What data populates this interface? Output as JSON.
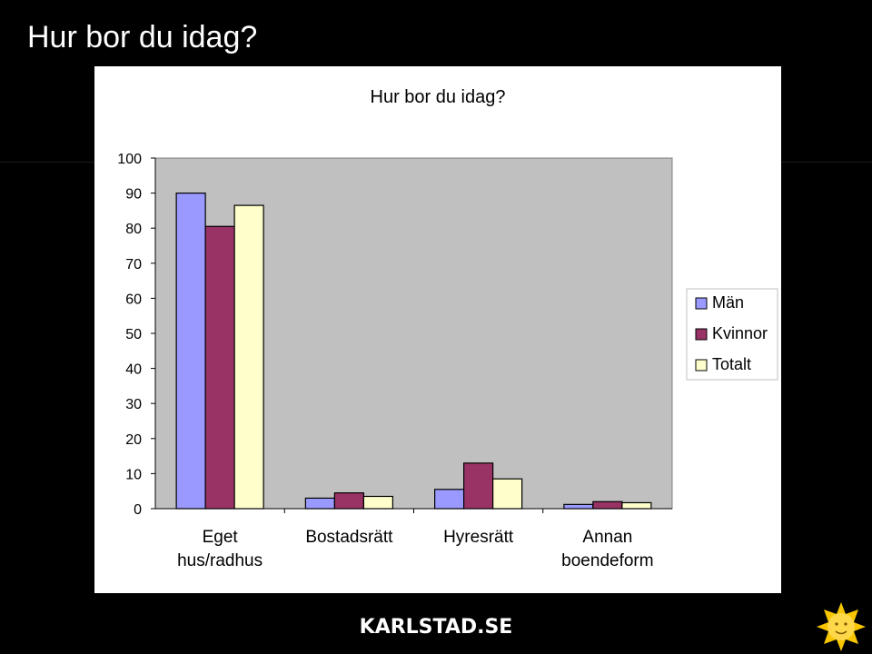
{
  "slide": {
    "title": "Hur bor du idag?",
    "footer_logo": "KARLSTAD.SE"
  },
  "colors": {
    "background": "#000000",
    "panel": "#ffffff",
    "plot_area": "#c0c0c0",
    "series_man": "#9999ff",
    "series_kvinnor": "#993366",
    "series_totalt": "#ffffcc"
  },
  "chart_data": {
    "type": "bar",
    "title": "Hur bor du idag?",
    "xlabel": "",
    "ylabel": "",
    "ylim": [
      0,
      100
    ],
    "yticks": [
      0,
      10,
      20,
      30,
      40,
      50,
      60,
      70,
      80,
      90,
      100
    ],
    "categories": [
      [
        "Eget",
        "hus/radhus"
      ],
      [
        "Bostadsrätt"
      ],
      [
        "Hyresrätt"
      ],
      [
        "Annan",
        "boendeform"
      ]
    ],
    "series": [
      {
        "name": "Män",
        "color": "#9999ff",
        "values": [
          90,
          3,
          5.5,
          1.2
        ]
      },
      {
        "name": "Kvinnor",
        "color": "#993366",
        "values": [
          80.5,
          4.5,
          13,
          2
        ]
      },
      {
        "name": "Totalt",
        "color": "#ffffcc",
        "values": [
          86.5,
          3.5,
          8.5,
          1.7
        ]
      }
    ],
    "grid": false,
    "legend_position": "right"
  }
}
